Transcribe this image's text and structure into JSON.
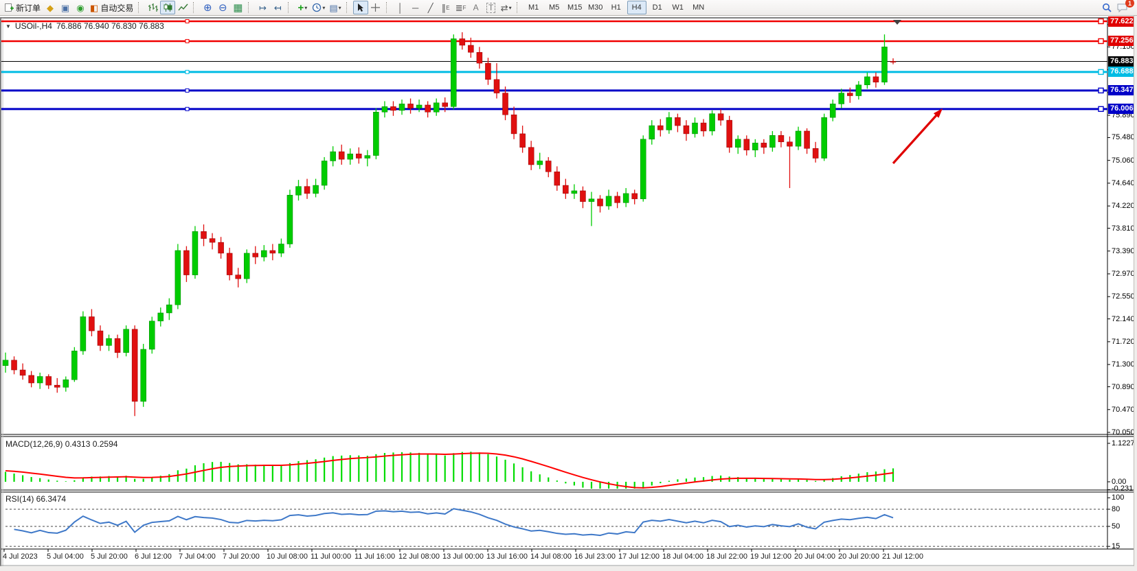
{
  "toolbar": {
    "new_order": "新订单",
    "autotrading": "自动交易",
    "icons": {
      "market_watch": "◆",
      "data_window": "▣",
      "signal": "◉",
      "autotrade_folder": "◧",
      "zoom_in": "⊕",
      "zoom_out": "⊖",
      "tile_windows": "▦",
      "auto_scroll": "↦",
      "chart_shift": "↤",
      "indicators_plus": "+",
      "templates": "▤",
      "vertical_line": "│",
      "horizontal_line": "─",
      "trend_line": "╱",
      "channel": "∥",
      "fibonacci": "≣",
      "text": "A",
      "text_label": "T",
      "arrows_tool": "⇄",
      "dropdown_caret": "▾",
      "title_caret": "▼"
    },
    "timeframes": [
      "M1",
      "M5",
      "M15",
      "M30",
      "H1",
      "H4",
      "D1",
      "W1",
      "MN"
    ],
    "active_timeframe": "H4",
    "notification_badge": "1"
  },
  "chart": {
    "title_symbol": "USOil-,H4",
    "title_ohlc": "76.886 76.940 76.830 76.883",
    "current_price": "76.883",
    "price_ticks": [
      "77.560",
      "77.150",
      "76.730",
      "76.310",
      "75.890",
      "75.480",
      "75.060",
      "74.640",
      "74.220",
      "73.810",
      "73.390",
      "72.970",
      "72.550",
      "72.140",
      "71.720",
      "71.300",
      "70.890",
      "70.470",
      "70.050"
    ]
  },
  "chart_data": {
    "type": "candlestick",
    "symbol": "USOil-",
    "timeframe": "H4",
    "ylim": [
      69.95,
      77.75
    ],
    "bull_color": "#00CC00",
    "bear_color": "#E01010",
    "time_labels": [
      "4 Jul 2023",
      "5 Jul 04:00",
      "5 Jul 20:00",
      "6 Jul 12:00",
      "7 Jul 04:00",
      "7 Jul 20:00",
      "10 Jul 08:00",
      "11 Jul 00:00",
      "11 Jul 16:00",
      "12 Jul 08:00",
      "13 Jul 00:00",
      "13 Jul 16:00",
      "14 Jul 08:00",
      "16 Jul 23:00",
      "17 Jul 12:00",
      "18 Jul 04:00",
      "18 Jul 22:00",
      "19 Jul 12:00",
      "20 Jul 04:00",
      "20 Jul 20:00",
      "21 Jul 12:00"
    ],
    "levels": [
      {
        "price": 77.622,
        "label": "77.622",
        "line_color": "#F00000",
        "badge_bg": "#E00000",
        "width": 2.5,
        "handle": true,
        "role": "resistance-line"
      },
      {
        "price": 77.256,
        "label": "77.256",
        "line_color": "#F00000",
        "badge_bg": "#E00000",
        "width": 2.5,
        "handle": true,
        "role": "resistance-line"
      },
      {
        "price": 76.883,
        "label": "76.883",
        "line_color": "#000000",
        "badge_bg": "#000000",
        "width": 1,
        "handle": false,
        "role": "current-price-line"
      },
      {
        "price": 76.688,
        "label": "76.688",
        "line_color": "#00BCE4",
        "badge_bg": "#00BCE4",
        "width": 3,
        "handle": true,
        "role": "support-line"
      },
      {
        "price": 76.347,
        "label": "76.347",
        "line_color": "#0000C8",
        "badge_bg": "#0000C8",
        "width": 3,
        "handle": true,
        "role": "support-line"
      },
      {
        "price": 76.006,
        "label": "76.006",
        "line_color": "#0000C8",
        "badge_bg": "#0000C8",
        "width": 3,
        "handle": true,
        "role": "support-line"
      }
    ],
    "ohlc": [
      [
        71.28,
        71.52,
        71.15,
        71.38
      ],
      [
        71.38,
        71.45,
        71.12,
        71.2
      ],
      [
        71.2,
        71.32,
        71.02,
        71.1
      ],
      [
        71.1,
        71.18,
        70.88,
        70.96
      ],
      [
        70.96,
        71.15,
        70.85,
        71.08
      ],
      [
        71.08,
        71.12,
        70.85,
        70.92
      ],
      [
        70.92,
        71.05,
        70.78,
        70.88
      ],
      [
        70.88,
        71.08,
        70.8,
        71.02
      ],
      [
        71.02,
        71.62,
        70.98,
        71.55
      ],
      [
        71.55,
        72.28,
        71.48,
        72.18
      ],
      [
        72.18,
        72.32,
        71.82,
        71.92
      ],
      [
        71.92,
        72.02,
        71.55,
        71.65
      ],
      [
        71.65,
        71.85,
        71.55,
        71.78
      ],
      [
        71.78,
        71.85,
        71.42,
        71.52
      ],
      [
        71.52,
        72.02,
        71.45,
        71.95
      ],
      [
        71.95,
        72.02,
        70.35,
        70.62
      ],
      [
        70.62,
        71.68,
        70.52,
        71.58
      ],
      [
        71.58,
        72.18,
        71.5,
        72.1
      ],
      [
        72.1,
        72.35,
        72.0,
        72.25
      ],
      [
        72.25,
        72.52,
        72.12,
        72.4
      ],
      [
        72.4,
        73.52,
        72.32,
        73.4
      ],
      [
        73.4,
        73.48,
        72.82,
        72.95
      ],
      [
        72.95,
        73.85,
        72.88,
        73.75
      ],
      [
        73.75,
        73.88,
        73.48,
        73.62
      ],
      [
        73.62,
        73.72,
        73.42,
        73.55
      ],
      [
        73.55,
        73.65,
        73.25,
        73.35
      ],
      [
        73.35,
        73.45,
        72.85,
        72.95
      ],
      [
        72.95,
        73.08,
        72.72,
        72.88
      ],
      [
        72.88,
        73.42,
        72.8,
        73.35
      ],
      [
        73.35,
        73.48,
        73.15,
        73.28
      ],
      [
        73.28,
        73.5,
        73.2,
        73.4
      ],
      [
        73.4,
        73.52,
        73.22,
        73.35
      ],
      [
        73.35,
        73.62,
        73.28,
        73.52
      ],
      [
        73.52,
        74.52,
        73.45,
        74.42
      ],
      [
        74.42,
        74.7,
        74.32,
        74.58
      ],
      [
        74.58,
        74.72,
        74.35,
        74.45
      ],
      [
        74.45,
        74.72,
        74.38,
        74.6
      ],
      [
        74.6,
        75.12,
        74.52,
        75.05
      ],
      [
        75.05,
        75.32,
        74.95,
        75.22
      ],
      [
        75.22,
        75.35,
        74.98,
        75.08
      ],
      [
        75.08,
        75.28,
        74.98,
        75.18
      ],
      [
        75.18,
        75.3,
        75.0,
        75.1
      ],
      [
        75.1,
        75.25,
        74.95,
        75.15
      ],
      [
        75.15,
        76.02,
        75.08,
        75.95
      ],
      [
        75.95,
        76.15,
        75.85,
        76.05
      ],
      [
        76.05,
        76.15,
        75.88,
        75.98
      ],
      [
        75.98,
        76.18,
        75.9,
        76.1
      ],
      [
        76.1,
        76.2,
        75.92,
        76.02
      ],
      [
        76.02,
        76.18,
        75.95,
        76.08
      ],
      [
        76.08,
        76.15,
        75.85,
        75.95
      ],
      [
        75.95,
        76.2,
        75.88,
        76.12
      ],
      [
        76.12,
        76.22,
        75.95,
        76.05
      ],
      [
        76.05,
        77.38,
        76.0,
        77.3
      ],
      [
        77.3,
        77.42,
        77.1,
        77.18
      ],
      [
        77.18,
        77.32,
        76.95,
        77.05
      ],
      [
        77.05,
        77.15,
        76.75,
        76.85
      ],
      [
        76.85,
        76.95,
        76.45,
        76.55
      ],
      [
        76.55,
        76.85,
        76.2,
        76.3
      ],
      [
        76.3,
        76.42,
        75.8,
        75.9
      ],
      [
        75.9,
        76.05,
        75.45,
        75.55
      ],
      [
        75.55,
        75.7,
        75.2,
        75.3
      ],
      [
        75.3,
        75.42,
        74.88,
        74.98
      ],
      [
        74.98,
        75.2,
        74.9,
        75.05
      ],
      [
        75.05,
        75.12,
        74.75,
        74.85
      ],
      [
        74.85,
        74.95,
        74.5,
        74.6
      ],
      [
        74.6,
        74.72,
        74.35,
        74.45
      ],
      [
        74.45,
        74.62,
        74.35,
        74.5
      ],
      [
        74.5,
        74.58,
        74.18,
        74.3
      ],
      [
        74.3,
        74.48,
        73.85,
        74.35
      ],
      [
        74.35,
        74.42,
        74.1,
        74.22
      ],
      [
        74.22,
        74.52,
        74.15,
        74.4
      ],
      [
        74.4,
        74.48,
        74.18,
        74.28
      ],
      [
        74.28,
        74.55,
        74.2,
        74.45
      ],
      [
        74.45,
        74.52,
        74.25,
        74.35
      ],
      [
        74.35,
        75.52,
        74.3,
        75.45
      ],
      [
        75.45,
        75.8,
        75.35,
        75.7
      ],
      [
        75.7,
        75.82,
        75.5,
        75.62
      ],
      [
        75.62,
        75.95,
        75.55,
        75.85
      ],
      [
        75.85,
        75.92,
        75.58,
        75.7
      ],
      [
        75.7,
        75.8,
        75.42,
        75.55
      ],
      [
        75.55,
        75.85,
        75.48,
        75.75
      ],
      [
        75.75,
        75.82,
        75.5,
        75.6
      ],
      [
        75.6,
        75.98,
        75.52,
        75.92
      ],
      [
        75.92,
        76.0,
        75.7,
        75.8
      ],
      [
        75.8,
        75.88,
        75.2,
        75.3
      ],
      [
        75.3,
        75.52,
        75.18,
        75.45
      ],
      [
        75.45,
        75.52,
        75.15,
        75.25
      ],
      [
        75.25,
        75.45,
        75.12,
        75.38
      ],
      [
        75.38,
        75.45,
        75.18,
        75.3
      ],
      [
        75.3,
        75.6,
        75.22,
        75.52
      ],
      [
        75.52,
        75.6,
        75.3,
        75.4
      ],
      [
        75.4,
        75.5,
        74.55,
        75.32
      ],
      [
        75.32,
        75.68,
        75.25,
        75.6
      ],
      [
        75.6,
        75.65,
        75.18,
        75.28
      ],
      [
        75.28,
        75.4,
        75.02,
        75.1
      ],
      [
        75.1,
        75.92,
        75.05,
        75.85
      ],
      [
        75.85,
        76.18,
        75.78,
        76.1
      ],
      [
        76.1,
        76.38,
        76.02,
        76.3
      ],
      [
        76.3,
        76.4,
        76.12,
        76.25
      ],
      [
        76.25,
        76.52,
        76.18,
        76.45
      ],
      [
        76.45,
        76.68,
        76.38,
        76.6
      ],
      [
        76.6,
        76.68,
        76.4,
        76.5
      ],
      [
        76.5,
        77.38,
        76.45,
        77.15
      ],
      [
        76.886,
        76.94,
        76.83,
        76.883
      ]
    ],
    "indicators": [
      {
        "name": "MACD",
        "params": "12,26,9",
        "label": "MACD(12,26,9) 0.4313 0.2594",
        "axis_labels": [
          {
            "text": "1.1227",
            "value": 1.1227
          },
          {
            "text": "0.00",
            "value": 0
          },
          {
            "text": "-0.2312",
            "value": -0.2312
          }
        ],
        "ylim": [
          -0.2312,
          1.1227
        ],
        "histogram_color": "#00DC00",
        "signal_color": "#FF0000"
      },
      {
        "name": "RSI",
        "params": "14",
        "label": "RSI(14) 66.3474",
        "axis_labels": [
          {
            "text": "100",
            "value": 100
          },
          {
            "text": "80",
            "value": 80
          },
          {
            "text": "50",
            "value": 50
          },
          {
            "text": "15",
            "value": 15
          }
        ],
        "levels": [
          80,
          50,
          15
        ],
        "ylim": [
          0,
          100
        ],
        "line_color": "#3E78C8"
      }
    ],
    "annotation_arrow": {
      "color": "#E00000"
    }
  }
}
